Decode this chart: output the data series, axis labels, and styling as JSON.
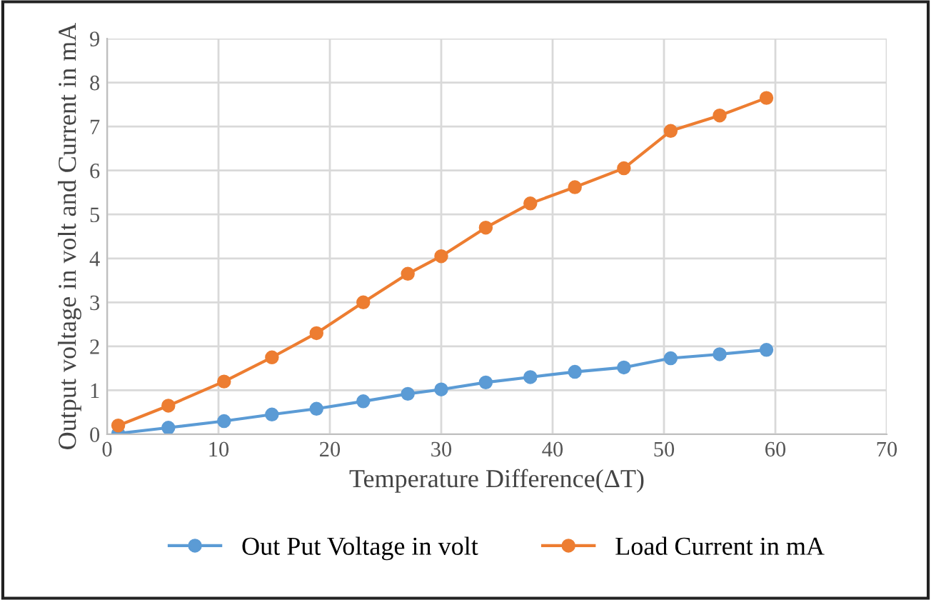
{
  "chart_data": {
    "type": "line",
    "xlabel": "Temperature Difference(ΔT)",
    "ylabel": "Output voltage in volt and Current in mA",
    "x": [
      1,
      5.5,
      10.5,
      14.8,
      18.8,
      23,
      27,
      30,
      34,
      38,
      42,
      46.4,
      50.6,
      55,
      59.2
    ],
    "series": [
      {
        "name": "Out Put Voltage in volt",
        "color": "#5b9bd5",
        "values": [
          0.02,
          0.15,
          0.3,
          0.45,
          0.58,
          0.75,
          0.92,
          1.02,
          1.18,
          1.3,
          1.42,
          1.52,
          1.73,
          1.82,
          1.92
        ]
      },
      {
        "name": "Load Current in mA",
        "color": "#ed7d31",
        "values": [
          0.2,
          0.65,
          1.2,
          1.75,
          2.3,
          3.0,
          3.65,
          4.05,
          4.7,
          5.25,
          5.62,
          6.05,
          6.9,
          7.25,
          7.65
        ]
      }
    ],
    "xlim": [
      0,
      70
    ],
    "xticks": [
      0,
      10,
      20,
      30,
      40,
      50,
      60,
      70
    ],
    "ylim": [
      0,
      9
    ],
    "yticks": [
      0,
      1,
      2,
      3,
      4,
      5,
      6,
      7,
      8,
      9
    ],
    "grid": true,
    "legend": "bottom",
    "marker": "circle",
    "line_style": "solid"
  }
}
